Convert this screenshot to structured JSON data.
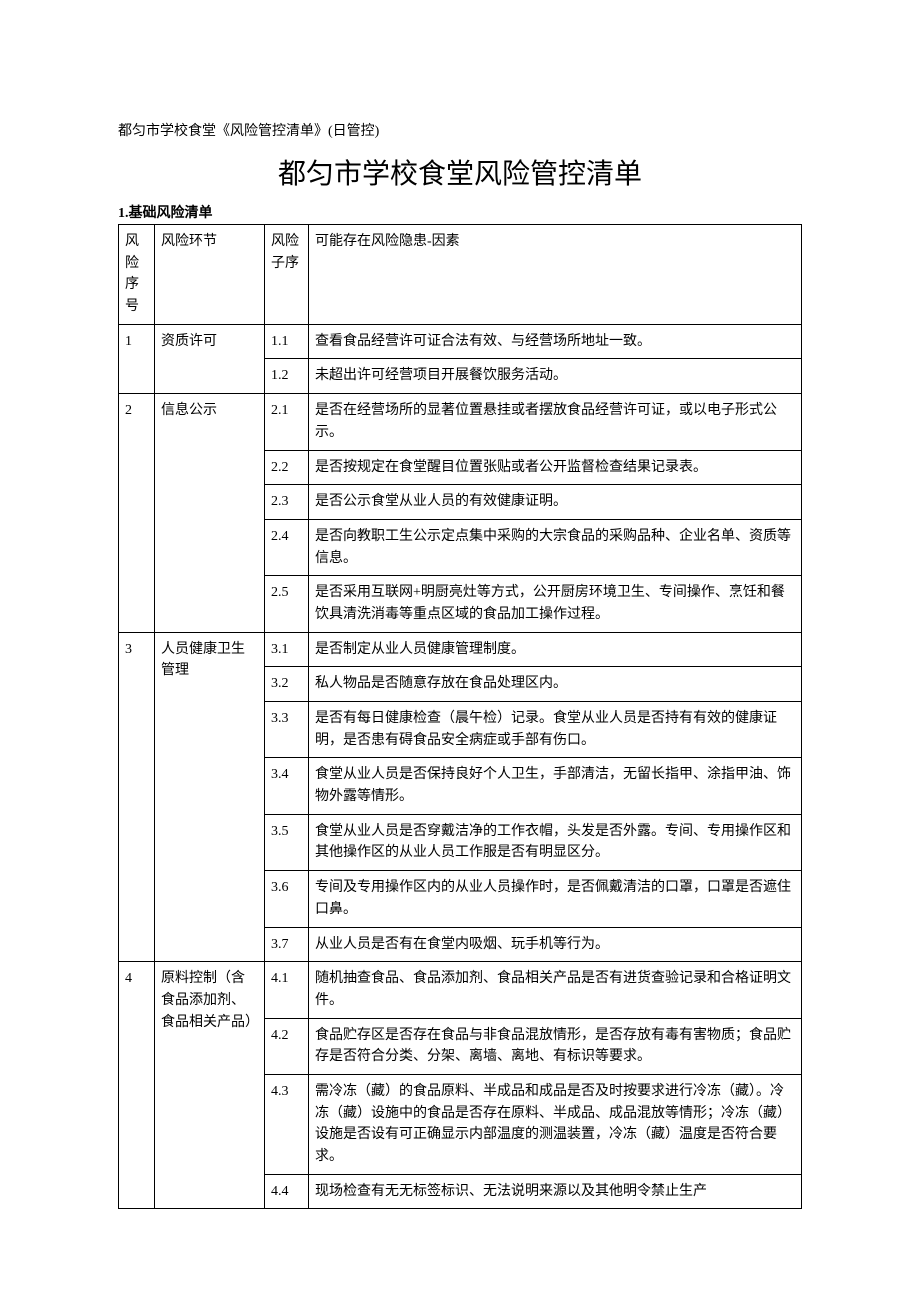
{
  "pre_title": "都匀市学校食堂《风险管控清单》(日管控)",
  "main_title": "都匀市学校食堂风险管控清单",
  "section_label_prefix": "1.",
  "section_label_text": "基础风险清单",
  "columns": {
    "risk_no": "风险序号",
    "risk_link": "风险环节",
    "sub_no": "风险子序",
    "factor_prefix": "可能存在风险隐患-",
    "factor_suffix": "因素"
  },
  "groups": [
    {
      "no": "1",
      "link": "资质许可",
      "items": [
        {
          "sub": "1.1",
          "text": "查看食品经营许可证合法有效、与经营场所地址一致。"
        },
        {
          "sub": "1.2",
          "text": "未超出许可经营项目开展餐饮服务活动。"
        }
      ]
    },
    {
      "no": "2",
      "link": "信息公示",
      "items": [
        {
          "sub": "2.1",
          "text": "是否在经营场所的显著位置悬挂或者摆放食品经营许可证，或以电子形式公示。"
        },
        {
          "sub": "2.2",
          "text": "是否按规定在食堂醒目位置张贴或者公开监督检查结果记录表。"
        },
        {
          "sub": "2.3",
          "text": "是否公示食堂从业人员的有效健康证明。"
        },
        {
          "sub": "2.4",
          "text": "是否向教职工生公示定点集中采购的大宗食品的采购品种、企业名单、资质等信息。"
        },
        {
          "sub": "2.5",
          "text": "是否采用互联网+明厨亮灶等方式，公开厨房环境卫生、专间操作、烹饪和餐饮具清洗消毒等重点区域的食品加工操作过程。"
        }
      ]
    },
    {
      "no": "3",
      "link": "人员健康卫生管理",
      "items": [
        {
          "sub": "3.1",
          "text": "是否制定从业人员健康管理制度。"
        },
        {
          "sub": "3.2",
          "text": "私人物品是否随意存放在食品处理区内。"
        },
        {
          "sub": "3.3",
          "text": "是否有每日健康检查（晨午检）记录。食堂从业人员是否持有有效的健康证明，是否患有碍食品安全病症或手部有伤口。"
        },
        {
          "sub": "3.4",
          "text": "食堂从业人员是否保持良好个人卫生，手部清洁，无留长指甲、涂指甲油、饰物外露等情形。"
        },
        {
          "sub": "3.5",
          "text": "食堂从业人员是否穿戴洁净的工作衣帽，头发是否外露。专间、专用操作区和其他操作区的从业人员工作服是否有明显区分。"
        },
        {
          "sub": "3.6",
          "text": "专间及专用操作区内的从业人员操作时，是否佩戴清洁的口罩，口罩是否遮住口鼻。"
        },
        {
          "sub": "3.7",
          "text": "从业人员是否有在食堂内吸烟、玩手机等行为。"
        }
      ]
    },
    {
      "no": "4",
      "link": "原料控制（含食品添加剂、食品相关产品）",
      "items": [
        {
          "sub": "4.1",
          "text": "随机抽查食品、食品添加剂、食品相关产品是否有进货查验记录和合格证明文件。"
        },
        {
          "sub": "4.2",
          "text": "食品贮存区是否存在食品与非食品混放情形，是否存放有毒有害物质；食品贮存是否符合分类、分架、离墙、离地、有标识等要求。"
        },
        {
          "sub": "4.3",
          "text": "需冷冻（藏）的食品原料、半成品和成品是否及时按要求进行冷冻（藏）。冷冻（藏）设施中的食品是否存在原料、半成品、成品混放等情形；冷冻（藏）设施是否设有可正确显示内部温度的测温装置，冷冻（藏）温度是否符合要求。"
        },
        {
          "sub": "4.4",
          "text": "现场检查有无无标签标识、无法说明来源以及其他明令禁止生产"
        }
      ]
    }
  ]
}
